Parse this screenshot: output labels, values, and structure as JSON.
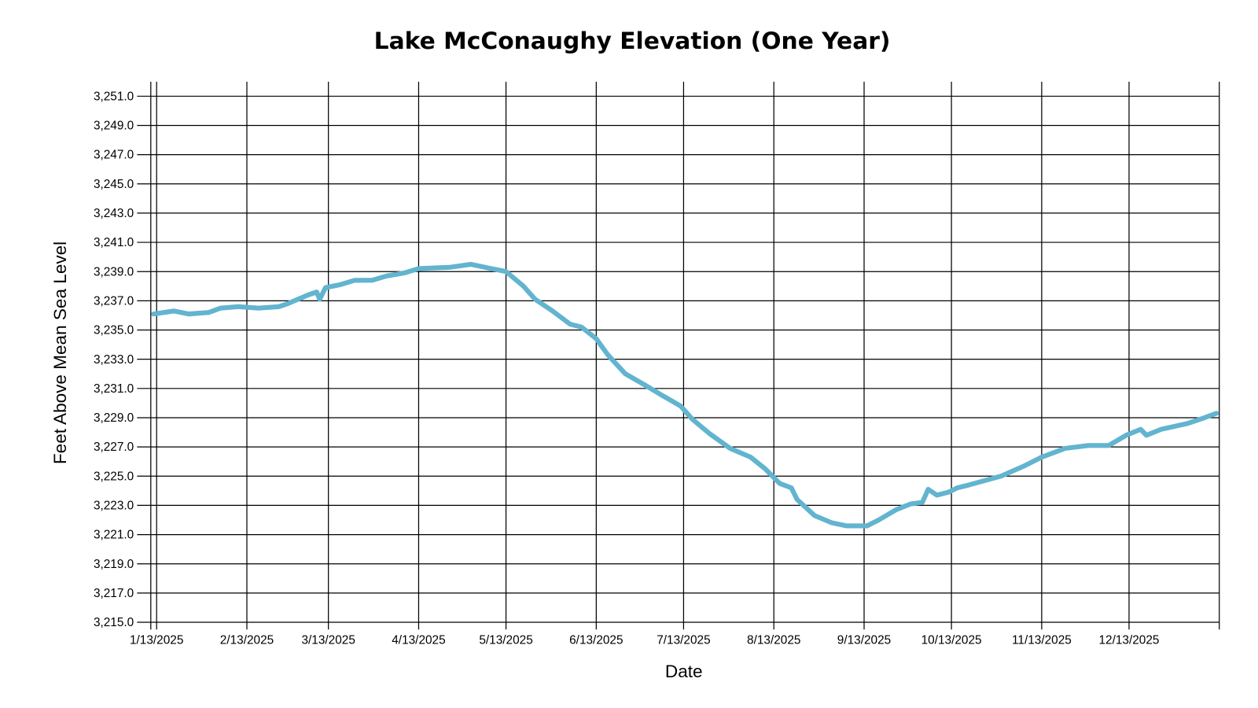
{
  "chart_data": {
    "type": "line",
    "title": "Lake McConaughy Elevation (One Year)",
    "xlabel": "Date",
    "ylabel": "Feet Above Mean Sea Level",
    "xlim": [
      "2025-01-11",
      "2026-01-13"
    ],
    "ylim": [
      3215.0,
      3251.0
    ],
    "grid": true,
    "line_color": "#62b4cf",
    "x_ticks": [
      "2025-01-13",
      "2025-02-13",
      "2025-03-13",
      "2025-04-13",
      "2025-05-13",
      "2025-06-13",
      "2025-07-13",
      "2025-08-13",
      "2025-09-13",
      "2025-10-13",
      "2025-11-13",
      "2025-12-13"
    ],
    "x_tick_labels": [
      "1/13/2025",
      "2/13/2025",
      "3/13/2025",
      "4/13/2025",
      "5/13/2025",
      "6/13/2025",
      "7/13/2025",
      "8/13/2025",
      "9/13/2025",
      "10/13/2025",
      "11/13/2025",
      "12/13/2025"
    ],
    "y_ticks": [
      3251,
      3249,
      3247,
      3245,
      3243,
      3241,
      3239,
      3237,
      3235,
      3233,
      3231,
      3229,
      3227,
      3225,
      3223,
      3221,
      3219,
      3217,
      3215
    ],
    "y_tick_labels": [
      "3,251.0",
      "3,249.0",
      "3,247.0",
      "3,245.0",
      "3,243.0",
      "3,241.0",
      "3,239.0",
      "3,237.0",
      "3,235.0",
      "3,233.0",
      "3,231.0",
      "3,229.0",
      "3,227.0",
      "3,225.0",
      "3,223.0",
      "3,221.0",
      "3,219.0",
      "3,217.0",
      "3,215.0"
    ],
    "x": [
      "2025-01-12",
      "2025-01-19",
      "2025-01-24",
      "2025-01-31",
      "2025-02-04",
      "2025-02-10",
      "2025-02-17",
      "2025-02-24",
      "2025-02-27",
      "2025-03-06",
      "2025-03-09",
      "2025-03-10",
      "2025-03-12",
      "2025-03-17",
      "2025-03-22",
      "2025-03-28",
      "2025-04-02",
      "2025-04-08",
      "2025-04-13",
      "2025-04-24",
      "2025-05-01",
      "2025-05-08",
      "2025-05-13",
      "2025-05-19",
      "2025-05-23",
      "2025-05-29",
      "2025-06-04",
      "2025-06-08",
      "2025-06-13",
      "2025-06-17",
      "2025-06-23",
      "2025-06-30",
      "2025-07-05",
      "2025-07-12",
      "2025-07-16",
      "2025-07-22",
      "2025-07-29",
      "2025-08-05",
      "2025-08-10",
      "2025-08-15",
      "2025-08-19",
      "2025-08-21",
      "2025-08-27",
      "2025-09-02",
      "2025-09-07",
      "2025-09-14",
      "2025-09-18",
      "2025-09-24",
      "2025-09-29",
      "2025-10-03",
      "2025-10-05",
      "2025-10-08",
      "2025-10-12",
      "2025-10-15",
      "2025-10-19",
      "2025-10-30",
      "2025-11-07",
      "2025-11-13",
      "2025-11-21",
      "2025-11-29",
      "2025-12-06",
      "2025-12-12",
      "2025-12-17",
      "2025-12-19",
      "2025-12-24",
      "2026-01-02",
      "2026-01-08",
      "2026-01-12"
    ],
    "y": [
      3236.1,
      3236.3,
      3236.1,
      3236.2,
      3236.5,
      3236.6,
      3236.5,
      3236.6,
      3236.8,
      3237.4,
      3237.6,
      3237.1,
      3237.9,
      3238.1,
      3238.4,
      3238.4,
      3238.7,
      3238.9,
      3239.2,
      3239.3,
      3239.5,
      3239.2,
      3239.0,
      3238.0,
      3237.1,
      3236.3,
      3235.4,
      3235.2,
      3234.4,
      3233.3,
      3232.0,
      3231.2,
      3230.6,
      3229.8,
      3228.9,
      3227.9,
      3226.9,
      3226.3,
      3225.5,
      3224.5,
      3224.2,
      3223.4,
      3222.3,
      3221.8,
      3221.6,
      3221.6,
      3222.0,
      3222.7,
      3223.1,
      3223.2,
      3224.1,
      3223.7,
      3223.9,
      3224.2,
      3224.4,
      3225.0,
      3225.7,
      3226.3,
      3226.9,
      3227.1,
      3227.1,
      3227.8,
      3228.2,
      3227.8,
      3228.2,
      3228.6,
      3229.0,
      3229.3
    ]
  }
}
